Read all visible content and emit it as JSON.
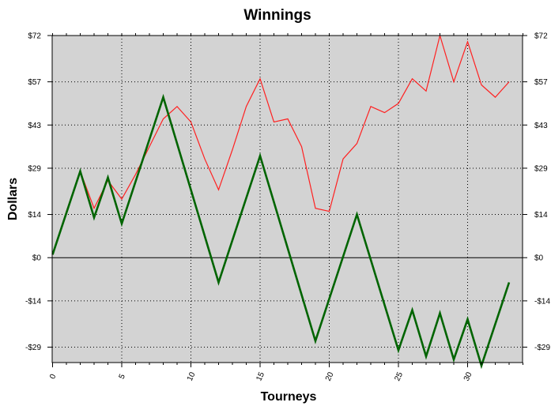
{
  "chart_data": {
    "type": "line",
    "title": "Winnings",
    "xlabel": "Tourneys",
    "ylabel": "Dollars",
    "xlim": [
      0,
      34
    ],
    "ylim": [
      -34,
      72
    ],
    "x_ticks": [
      0,
      5,
      10,
      15,
      20,
      25,
      30
    ],
    "y_ticks": [
      72,
      57,
      43,
      29,
      14,
      0,
      -14,
      -29
    ],
    "y_tick_labels": [
      "$72",
      "$57",
      "$43",
      "$29",
      "$14",
      "$0",
      "-$14",
      "-$29"
    ],
    "grid": true,
    "background_color": "#d3d3d3",
    "series": [
      {
        "color": "#ff2020",
        "x": [
          0,
          1,
          2,
          3,
          4,
          5,
          6,
          7,
          8,
          9,
          10,
          11,
          12,
          13,
          14,
          15,
          16,
          17,
          18,
          19,
          20,
          21,
          22,
          23,
          24,
          25,
          26,
          27,
          28,
          29,
          30,
          31,
          32,
          33
        ],
        "values": [
          1,
          15,
          28,
          16,
          25,
          19,
          27,
          36,
          45,
          49,
          44,
          32,
          22,
          35,
          49,
          58,
          44,
          45,
          36,
          16,
          15,
          32,
          37,
          49,
          47,
          50,
          58,
          54,
          72,
          57,
          70,
          56,
          52,
          57
        ]
      },
      {
        "color": "#006400",
        "x": [
          0,
          2,
          3,
          4,
          5,
          8,
          12,
          15,
          19,
          22,
          25,
          26,
          27,
          28,
          29,
          30,
          31,
          33
        ],
        "values": [
          1,
          28,
          13,
          26,
          11,
          52,
          -8,
          33,
          -27,
          14,
          -30,
          -17,
          -32,
          -18,
          -33,
          -20,
          -35,
          -8
        ]
      }
    ]
  }
}
